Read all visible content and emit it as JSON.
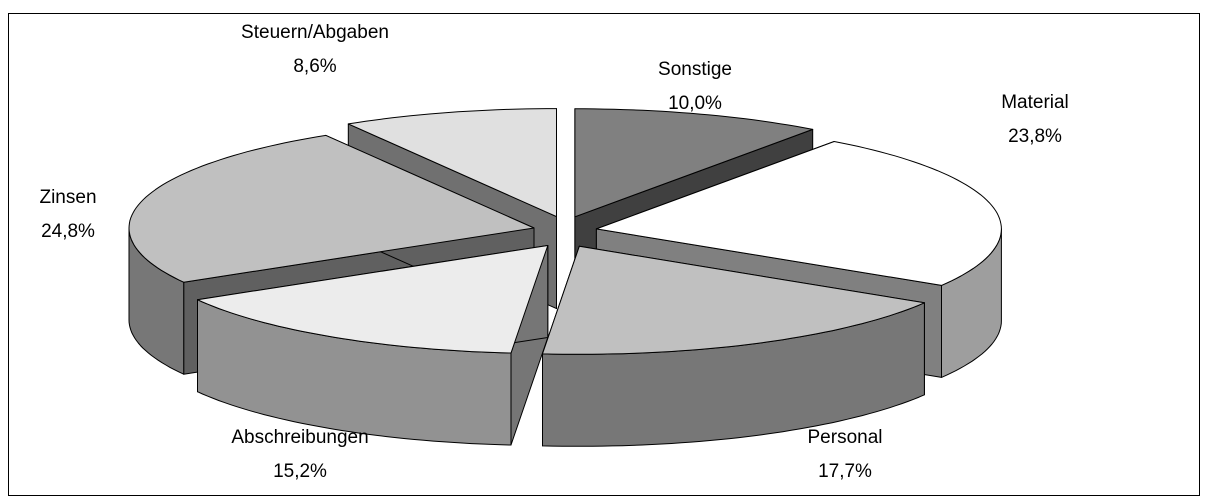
{
  "chart_data": {
    "type": "pie3d",
    "categories": [
      "Sonstige",
      "Material",
      "Personal",
      "Abschreibungen",
      "Zinsen",
      "Steuern/Abgaben"
    ],
    "values": [
      10.0,
      23.8,
      17.7,
      15.2,
      24.8,
      8.6
    ],
    "value_labels": [
      "10,0%",
      "23,8%",
      "17,7%",
      "15,2%",
      "24,8%",
      "8,6%"
    ],
    "colors": [
      "#808080",
      "#ffffff",
      "#c0c0c0",
      "#ececec",
      "#c0c0c0",
      "#e0e0e0"
    ]
  }
}
